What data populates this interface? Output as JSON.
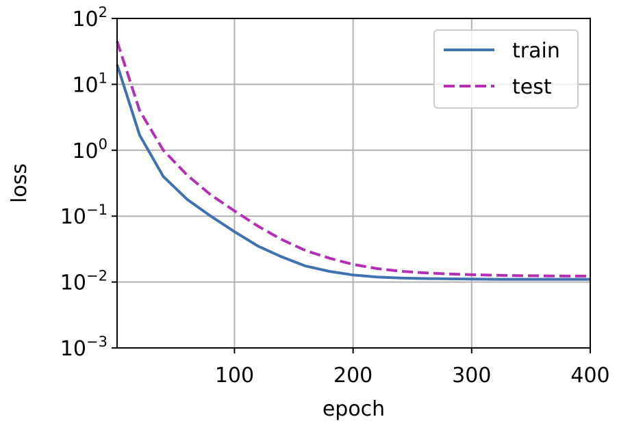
{
  "chart_data": {
    "type": "line",
    "xlabel": "epoch",
    "ylabel": "loss",
    "xlim": [
      1,
      400
    ],
    "ylim": [
      0.001,
      100
    ],
    "yscale": "log",
    "grid": true,
    "legend_position": "top-right",
    "x_ticks": [
      {
        "value": 100,
        "label": "100"
      },
      {
        "value": 200,
        "label": "200"
      },
      {
        "value": 300,
        "label": "300"
      },
      {
        "value": 400,
        "label": "400"
      }
    ],
    "y_ticks": [
      {
        "value": 100,
        "base": "10",
        "exp": "2"
      },
      {
        "value": 10,
        "base": "10",
        "exp": "1"
      },
      {
        "value": 1,
        "base": "10",
        "exp": "0"
      },
      {
        "value": 0.1,
        "base": "10",
        "exp": "−1"
      },
      {
        "value": 0.01,
        "base": "10",
        "exp": "−2"
      },
      {
        "value": 0.001,
        "base": "10",
        "exp": "−3"
      }
    ],
    "x": [
      1,
      20,
      40,
      60,
      80,
      100,
      120,
      140,
      160,
      180,
      200,
      220,
      240,
      260,
      280,
      300,
      320,
      340,
      360,
      380,
      400
    ],
    "series": [
      {
        "name": "train",
        "color": "#3f72af",
        "dash": "solid",
        "values": [
          20,
          1.7,
          0.4,
          0.18,
          0.1,
          0.058,
          0.035,
          0.024,
          0.0175,
          0.0145,
          0.0128,
          0.0119,
          0.0115,
          0.0113,
          0.0112,
          0.0111,
          0.011,
          0.011,
          0.011,
          0.011,
          0.011
        ]
      },
      {
        "name": "test",
        "color": "#b52fb5",
        "dash": "dashed",
        "values": [
          45,
          4,
          1.0,
          0.42,
          0.21,
          0.12,
          0.07,
          0.044,
          0.03,
          0.023,
          0.0185,
          0.016,
          0.0146,
          0.0138,
          0.0133,
          0.0129,
          0.0127,
          0.0125,
          0.0124,
          0.0123,
          0.0123
        ]
      }
    ]
  }
}
